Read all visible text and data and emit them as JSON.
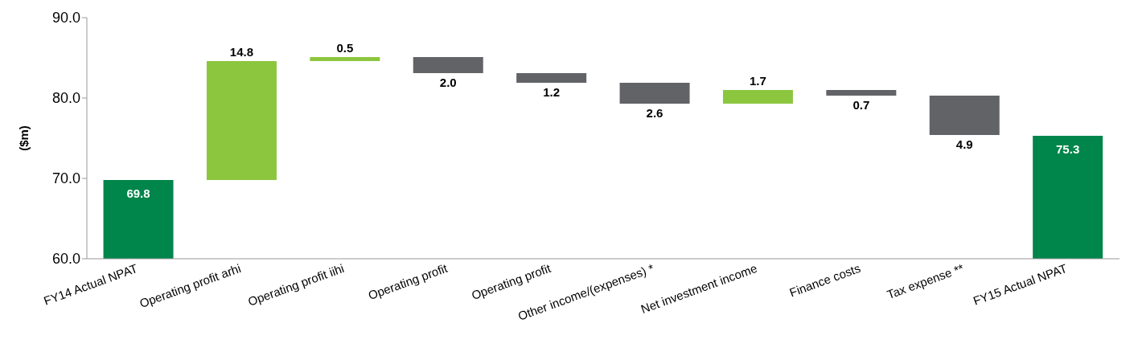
{
  "chart_data": {
    "type": "bar",
    "ylabel": "($m)",
    "categories": [
      "FY14 Actual NPAT",
      "Operating profit arhi",
      "Operating profit iihi",
      "Operating profit",
      "Operating profit",
      "Other income/(expenses) *",
      "Net investment income",
      "Finance costs",
      "Tax expense **",
      "FY15 Actual NPAT"
    ],
    "values": [
      69.8,
      14.8,
      0.5,
      -2.0,
      -1.2,
      -2.6,
      1.7,
      -0.7,
      -4.9,
      75.3
    ],
    "base": [
      null,
      69.8,
      84.6,
      85.1,
      83.1,
      81.9,
      79.3,
      81.0,
      80.3,
      null
    ],
    "colors": [
      "#00854a",
      "#8cc63f",
      "#8cc63f",
      "#626366",
      "#626366",
      "#626366",
      "#8cc63f",
      "#626366",
      "#626366",
      "#00854a"
    ],
    "value_labels": [
      "69.8",
      "14.8",
      "0.5",
      "2.0",
      "1.2",
      "2.6",
      "1.7",
      "0.7",
      "4.9",
      "75.3"
    ],
    "ylim": [
      60,
      90
    ],
    "yticks": [
      {
        "value": 60,
        "label": "60.0"
      },
      {
        "value": 70,
        "label": "70.0"
      },
      {
        "value": 80,
        "label": "80.0"
      },
      {
        "value": 90,
        "label": "90.0"
      }
    ],
    "grid": false,
    "legend": false
  }
}
